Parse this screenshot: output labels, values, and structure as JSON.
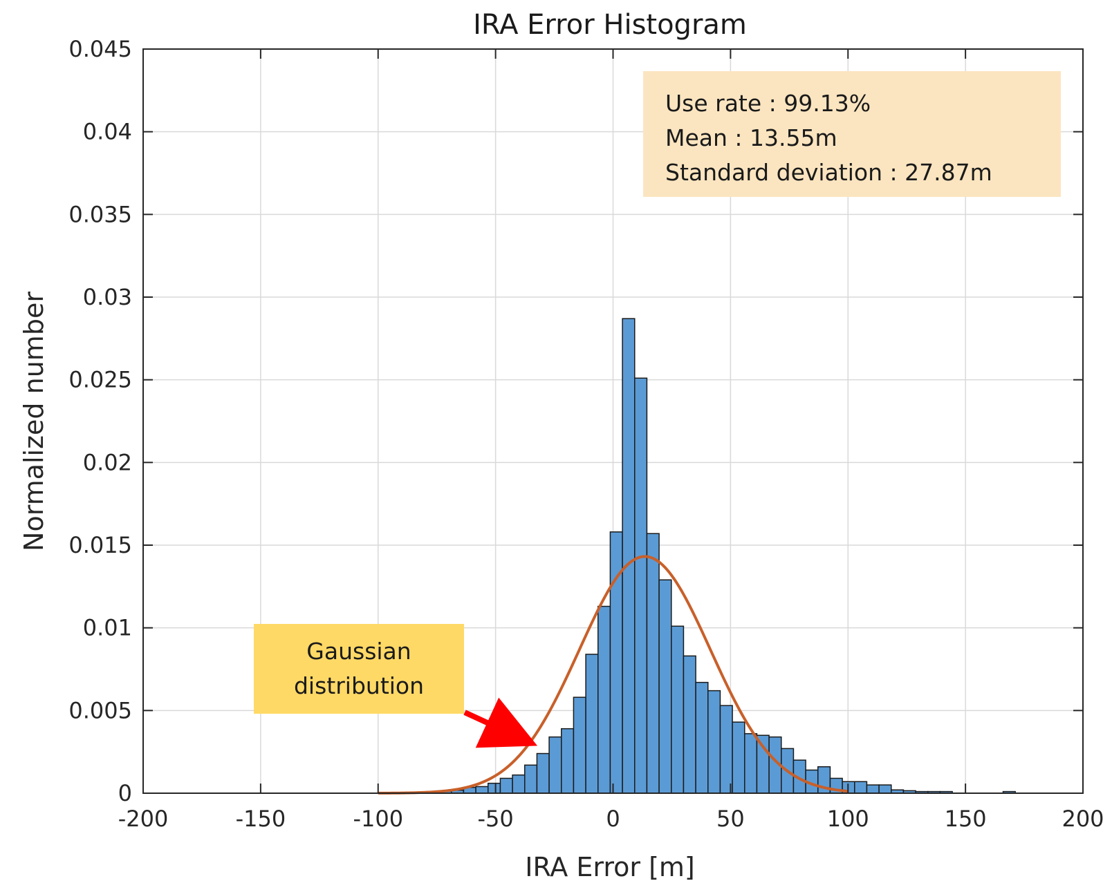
{
  "chart_data": {
    "type": "bar",
    "title": "IRA Error Histogram",
    "xlabel": "IRA Error [m]",
    "ylabel": "Normalized number",
    "xlim": [
      -200,
      200
    ],
    "ylim": [
      0,
      0.045
    ],
    "grid": true,
    "x_ticks": [
      "-200",
      "-150",
      "-100",
      "-50",
      "0",
      "50",
      "100",
      "150",
      "200"
    ],
    "y_ticks": [
      "0",
      "0.005",
      "0.01",
      "0.015",
      "0.02",
      "0.025",
      "0.03",
      "0.035",
      "0.04",
      "0.045"
    ],
    "x_tick_values": [
      -200,
      -150,
      -100,
      -50,
      0,
      50,
      100,
      150,
      200
    ],
    "y_tick_values": [
      0,
      0.005,
      0.01,
      0.015,
      0.02,
      0.025,
      0.03,
      0.035,
      0.04,
      0.045
    ],
    "bin_width": 5.2,
    "bins": [
      {
        "x": -100,
        "value": 5e-05
      },
      {
        "x": -94.8,
        "value": 5e-05
      },
      {
        "x": -89.6,
        "value": 5e-05
      },
      {
        "x": -84.4,
        "value": 7e-05
      },
      {
        "x": -79.2,
        "value": 0.0001
      },
      {
        "x": -74,
        "value": 0.00012
      },
      {
        "x": -68.8,
        "value": 0.00018
      },
      {
        "x": -63.6,
        "value": 0.00035
      },
      {
        "x": -58.4,
        "value": 0.0004
      },
      {
        "x": -53.2,
        "value": 0.0006
      },
      {
        "x": -48,
        "value": 0.0009
      },
      {
        "x": -42.8,
        "value": 0.0011
      },
      {
        "x": -37.6,
        "value": 0.0017
      },
      {
        "x": -32.4,
        "value": 0.0024
      },
      {
        "x": -27.2,
        "value": 0.0034
      },
      {
        "x": -22,
        "value": 0.0039
      },
      {
        "x": -16.8,
        "value": 0.0058
      },
      {
        "x": -11.6,
        "value": 0.0084
      },
      {
        "x": -6.4,
        "value": 0.0113
      },
      {
        "x": -1.2,
        "value": 0.0158
      },
      {
        "x": 4,
        "value": 0.0287
      },
      {
        "x": 9.2,
        "value": 0.0251
      },
      {
        "x": 14.4,
        "value": 0.0157
      },
      {
        "x": 19.6,
        "value": 0.0129
      },
      {
        "x": 24.8,
        "value": 0.0101
      },
      {
        "x": 30,
        "value": 0.0083
      },
      {
        "x": 35.2,
        "value": 0.0067
      },
      {
        "x": 40.4,
        "value": 0.0062
      },
      {
        "x": 45.6,
        "value": 0.0053
      },
      {
        "x": 50.8,
        "value": 0.0043
      },
      {
        "x": 56,
        "value": 0.0036
      },
      {
        "x": 61.2,
        "value": 0.0035
      },
      {
        "x": 66.4,
        "value": 0.0034
      },
      {
        "x": 71.6,
        "value": 0.0027
      },
      {
        "x": 76.8,
        "value": 0.002
      },
      {
        "x": 82,
        "value": 0.0014
      },
      {
        "x": 87.2,
        "value": 0.0016
      },
      {
        "x": 92.4,
        "value": 0.0009
      },
      {
        "x": 97.6,
        "value": 0.0007
      },
      {
        "x": 102.8,
        "value": 0.0007
      },
      {
        "x": 108,
        "value": 0.0005
      },
      {
        "x": 113.2,
        "value": 0.0005
      },
      {
        "x": 118.4,
        "value": 0.0002
      },
      {
        "x": 123.6,
        "value": 0.00015
      },
      {
        "x": 128.8,
        "value": 0.0001
      },
      {
        "x": 134,
        "value": 0.0001
      },
      {
        "x": 139.2,
        "value": 0.0001
      },
      {
        "x": 166,
        "value": 0.0001
      }
    ],
    "gaussian_fit": {
      "name": "Gaussian distribution",
      "mean": 13.55,
      "std": 27.87,
      "x_range": [
        -100,
        100
      ],
      "color": "#c8602a"
    },
    "bar_color": "#5b9bd5",
    "annotations": {
      "stats_lines": [
        "Use rate : 99.13%",
        "Mean : 13.55m",
        "Standard deviation : 27.87m"
      ],
      "stats_box_color": "#fbe5c0",
      "gauss_label_lines": [
        "Gaussian",
        "distribution"
      ],
      "gauss_label_color": "#ffd966",
      "arrow_color": "#ff0000"
    }
  }
}
